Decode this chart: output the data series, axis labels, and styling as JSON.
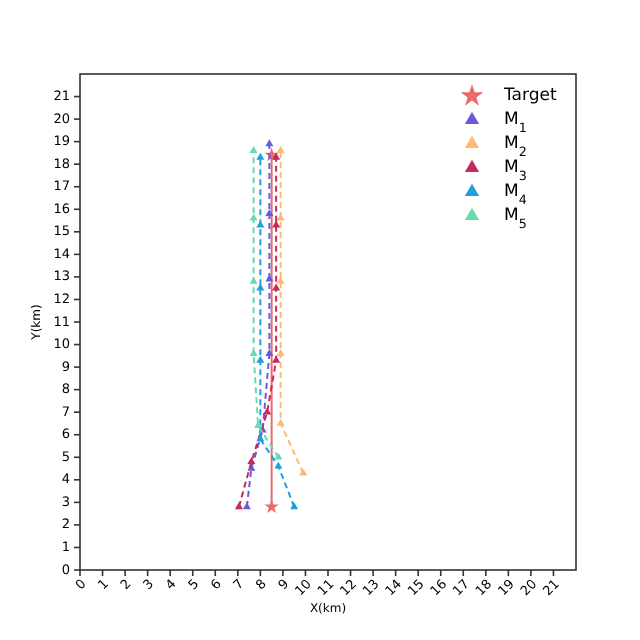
{
  "chart_data": {
    "type": "line",
    "xlabel": "X(km)",
    "ylabel": "Y(km)",
    "xlim": [
      0,
      22
    ],
    "ylim": [
      0,
      22
    ],
    "xticks": [
      0,
      1,
      2,
      3,
      4,
      5,
      6,
      7,
      8,
      9,
      10,
      11,
      12,
      13,
      14,
      15,
      16,
      17,
      18,
      19,
      20,
      21
    ],
    "yticks": [
      0,
      1,
      2,
      3,
      4,
      5,
      6,
      7,
      8,
      9,
      10,
      11,
      12,
      13,
      14,
      15,
      16,
      17,
      18,
      19,
      20,
      21
    ],
    "grid": false,
    "legend": "top right",
    "series": [
      {
        "name": "Target",
        "color": "#e86a6a",
        "marker": "star",
        "line_style": "solid",
        "x": [
          8.5,
          8.5
        ],
        "values": [
          2.8,
          18.4
        ]
      },
      {
        "name": "M$_{1}$",
        "color": "#6a5ae0",
        "marker": "triangle",
        "line_style": "dashed",
        "x": [
          7.4,
          7.6,
          8.1,
          8.4,
          8.4,
          8.4,
          8.4
        ],
        "values": [
          2.8,
          4.5,
          6.2,
          9.6,
          12.9,
          15.8,
          18.9
        ]
      },
      {
        "name": "M$_{2}$",
        "color": "#ffb870",
        "marker": "triangle",
        "line_style": "dashed",
        "x": [
          9.9,
          8.9,
          8.9,
          8.9,
          8.9,
          8.9
        ],
        "values": [
          4.3,
          6.5,
          9.6,
          12.8,
          15.6,
          18.6
        ]
      },
      {
        "name": "M$_{3}$",
        "color": "#c8285a",
        "marker": "triangle",
        "line_style": "dashed",
        "x": [
          7.05,
          7.6,
          8.3,
          8.7,
          8.7,
          8.7,
          8.7
        ],
        "values": [
          2.8,
          4.8,
          7.0,
          9.3,
          12.5,
          15.3,
          18.3
        ]
      },
      {
        "name": "M$_{4}$",
        "color": "#1ea0dc",
        "marker": "triangle",
        "line_style": "dashed",
        "x": [
          9.5,
          8.8,
          8.0,
          8.0,
          8.0,
          8.0,
          8.0
        ],
        "values": [
          2.8,
          4.6,
          5.8,
          9.3,
          12.5,
          15.3,
          18.3
        ]
      },
      {
        "name": "M$_{5}$",
        "color": "#66ddaa",
        "marker": "triangle",
        "line_style": "dashed",
        "x": [
          8.8,
          7.9,
          7.7,
          7.7,
          7.7,
          7.7
        ],
        "values": [
          5.0,
          6.4,
          9.6,
          12.8,
          15.6,
          18.6
        ]
      }
    ]
  }
}
